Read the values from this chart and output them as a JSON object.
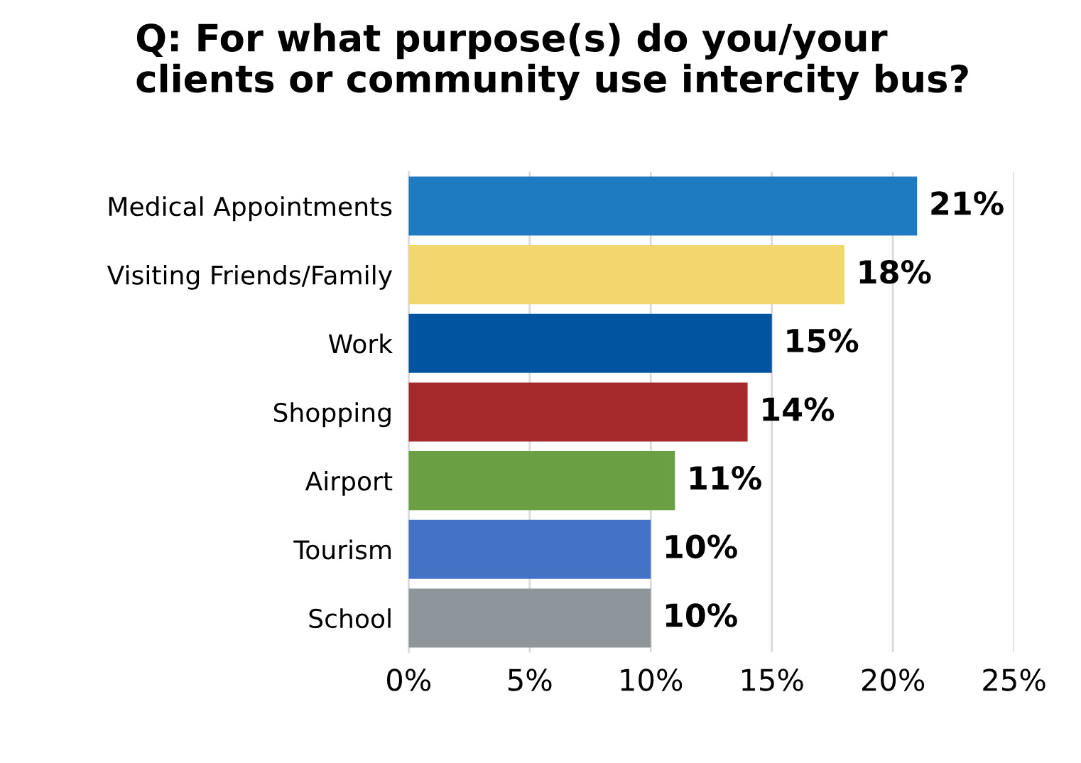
{
  "chart_data": {
    "type": "bar",
    "orientation": "horizontal",
    "title": "Q: For what purpose(s) do you/your\nclients or community use intercity bus?",
    "categories": [
      "Medical Appointments",
      "Visiting Friends/Family",
      "Work",
      "Shopping",
      "Airport",
      "Tourism",
      "School"
    ],
    "values": [
      21,
      18,
      15,
      14,
      11,
      10,
      10
    ],
    "colors": [
      "#1f7bc1",
      "#f2d66e",
      "#0054a0",
      "#a6292c",
      "#6aa043",
      "#4472c4",
      "#8e959b"
    ],
    "xlim": [
      0,
      25
    ],
    "xticks": [
      {
        "value": 0,
        "label": "0%"
      },
      {
        "value": 5,
        "label": "5%"
      },
      {
        "value": 10,
        "label": "10%"
      },
      {
        "value": 15,
        "label": "15%"
      },
      {
        "value": 20,
        "label": "20%"
      },
      {
        "value": 25,
        "label": "25%"
      }
    ],
    "value_labels": [
      "21%",
      "18%",
      "15%",
      "14%",
      "11%",
      "10%",
      "10%"
    ],
    "grid": "x",
    "legend": false
  }
}
